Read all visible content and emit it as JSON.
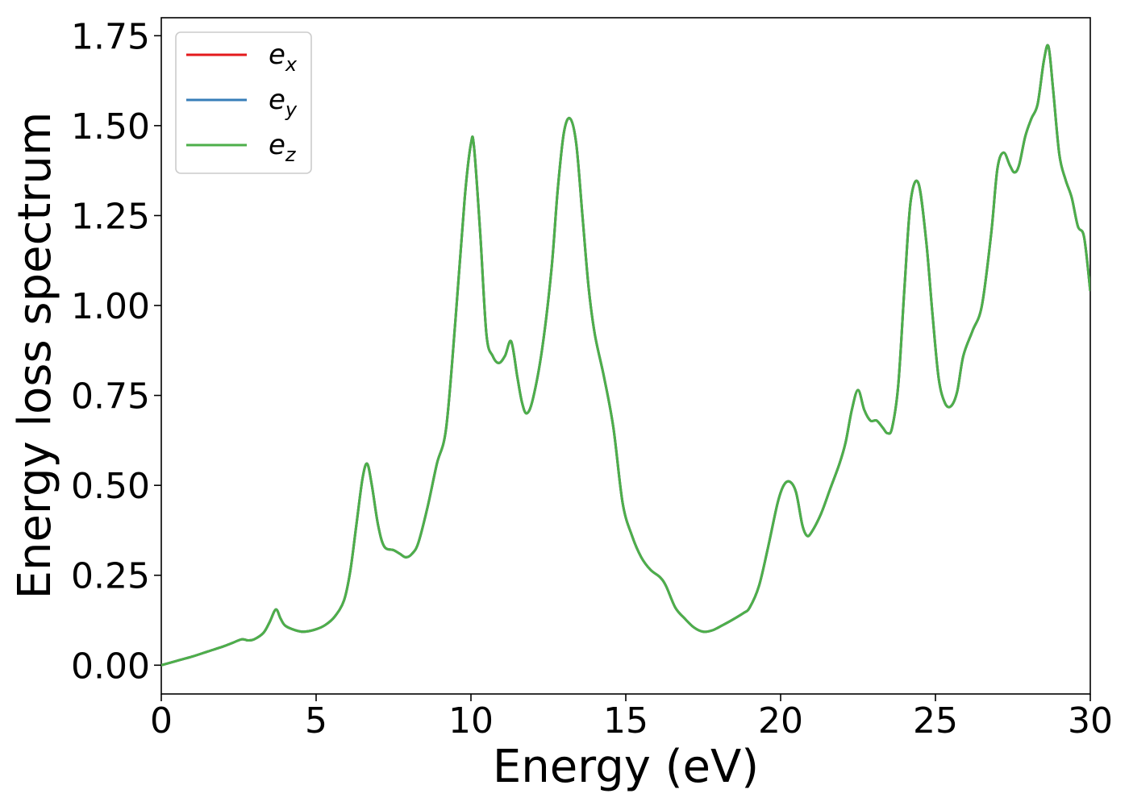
{
  "chart_data": {
    "type": "line",
    "xlabel": "Energy (eV)",
    "ylabel": "Energy loss spectrum",
    "xlim": [
      0,
      30
    ],
    "ylim": [
      -0.08,
      1.8
    ],
    "xticks": [
      0,
      5,
      10,
      15,
      20,
      25,
      30
    ],
    "xtick_labels": [
      "0",
      "5",
      "10",
      "15",
      "20",
      "25",
      "30"
    ],
    "yticks": [
      0.0,
      0.25,
      0.5,
      0.75,
      1.0,
      1.25,
      1.5,
      1.75
    ],
    "ytick_labels": [
      "0.00",
      "0.25",
      "0.50",
      "0.75",
      "1.00",
      "1.25",
      "1.50",
      "1.75"
    ],
    "grid": false,
    "legend_position": "top-left",
    "series": [
      {
        "name": "e_x",
        "legend_base": "e",
        "legend_sub": "x",
        "color": "#e41a1c",
        "x": [
          0,
          0.5,
          1.0,
          1.5,
          2.0,
          2.3,
          2.6,
          2.8,
          3.0,
          3.3,
          3.5,
          3.7,
          3.85,
          4.0,
          4.3,
          4.6,
          5.0,
          5.3,
          5.6,
          5.9,
          6.1,
          6.3,
          6.5,
          6.65,
          6.8,
          7.0,
          7.2,
          7.5,
          7.7,
          7.9,
          8.1,
          8.3,
          8.6,
          8.9,
          9.2,
          9.5,
          9.8,
          10.0,
          10.1,
          10.3,
          10.5,
          10.7,
          10.9,
          11.1,
          11.3,
          11.5,
          11.65,
          11.8,
          12.0,
          12.3,
          12.6,
          12.8,
          13.0,
          13.2,
          13.4,
          13.6,
          13.8,
          14.0,
          14.3,
          14.6,
          14.9,
          15.2,
          15.5,
          15.8,
          16.1,
          16.3,
          16.6,
          16.9,
          17.2,
          17.5,
          17.8,
          18.1,
          18.4,
          18.8,
          19.0,
          19.3,
          19.6,
          19.9,
          20.1,
          20.3,
          20.5,
          20.7,
          20.85,
          21.0,
          21.3,
          21.6,
          21.9,
          22.1,
          22.3,
          22.5,
          22.7,
          22.9,
          23.1,
          23.3,
          23.45,
          23.6,
          23.8,
          24.0,
          24.2,
          24.45,
          24.7,
          24.9,
          25.1,
          25.3,
          25.5,
          25.7,
          25.9,
          26.2,
          26.5,
          26.8,
          27.0,
          27.2,
          27.4,
          27.55,
          27.7,
          27.9,
          28.1,
          28.3,
          28.5,
          28.65,
          28.8,
          29.0,
          29.2,
          29.4,
          29.6,
          29.8,
          30.0
        ],
        "y": [
          0.0,
          0.012,
          0.024,
          0.038,
          0.052,
          0.062,
          0.072,
          0.069,
          0.072,
          0.09,
          0.12,
          0.155,
          0.13,
          0.11,
          0.098,
          0.093,
          0.1,
          0.112,
          0.135,
          0.18,
          0.26,
          0.39,
          0.52,
          0.56,
          0.5,
          0.39,
          0.33,
          0.32,
          0.31,
          0.3,
          0.31,
          0.34,
          0.44,
          0.56,
          0.66,
          0.96,
          1.3,
          1.45,
          1.44,
          1.2,
          0.92,
          0.86,
          0.84,
          0.86,
          0.9,
          0.8,
          0.73,
          0.7,
          0.74,
          0.88,
          1.1,
          1.32,
          1.48,
          1.52,
          1.45,
          1.25,
          1.05,
          0.92,
          0.8,
          0.66,
          0.45,
          0.36,
          0.3,
          0.265,
          0.245,
          0.22,
          0.16,
          0.13,
          0.105,
          0.093,
          0.097,
          0.11,
          0.124,
          0.145,
          0.16,
          0.22,
          0.33,
          0.45,
          0.5,
          0.51,
          0.48,
          0.39,
          0.36,
          0.37,
          0.42,
          0.49,
          0.56,
          0.62,
          0.71,
          0.765,
          0.71,
          0.68,
          0.68,
          0.66,
          0.645,
          0.66,
          0.78,
          1.05,
          1.29,
          1.34,
          1.18,
          0.98,
          0.8,
          0.73,
          0.72,
          0.76,
          0.86,
          0.93,
          1.0,
          1.2,
          1.38,
          1.425,
          1.39,
          1.37,
          1.39,
          1.47,
          1.52,
          1.56,
          1.68,
          1.72,
          1.6,
          1.42,
          1.35,
          1.3,
          1.22,
          1.19,
          1.04
        ]
      },
      {
        "name": "e_y",
        "legend_base": "e",
        "legend_sub": "y",
        "color": "#377eb8",
        "same_as": "e_x"
      },
      {
        "name": "e_z",
        "legend_base": "e",
        "legend_sub": "z",
        "color": "#4daf4a",
        "same_as": "e_x"
      }
    ]
  }
}
